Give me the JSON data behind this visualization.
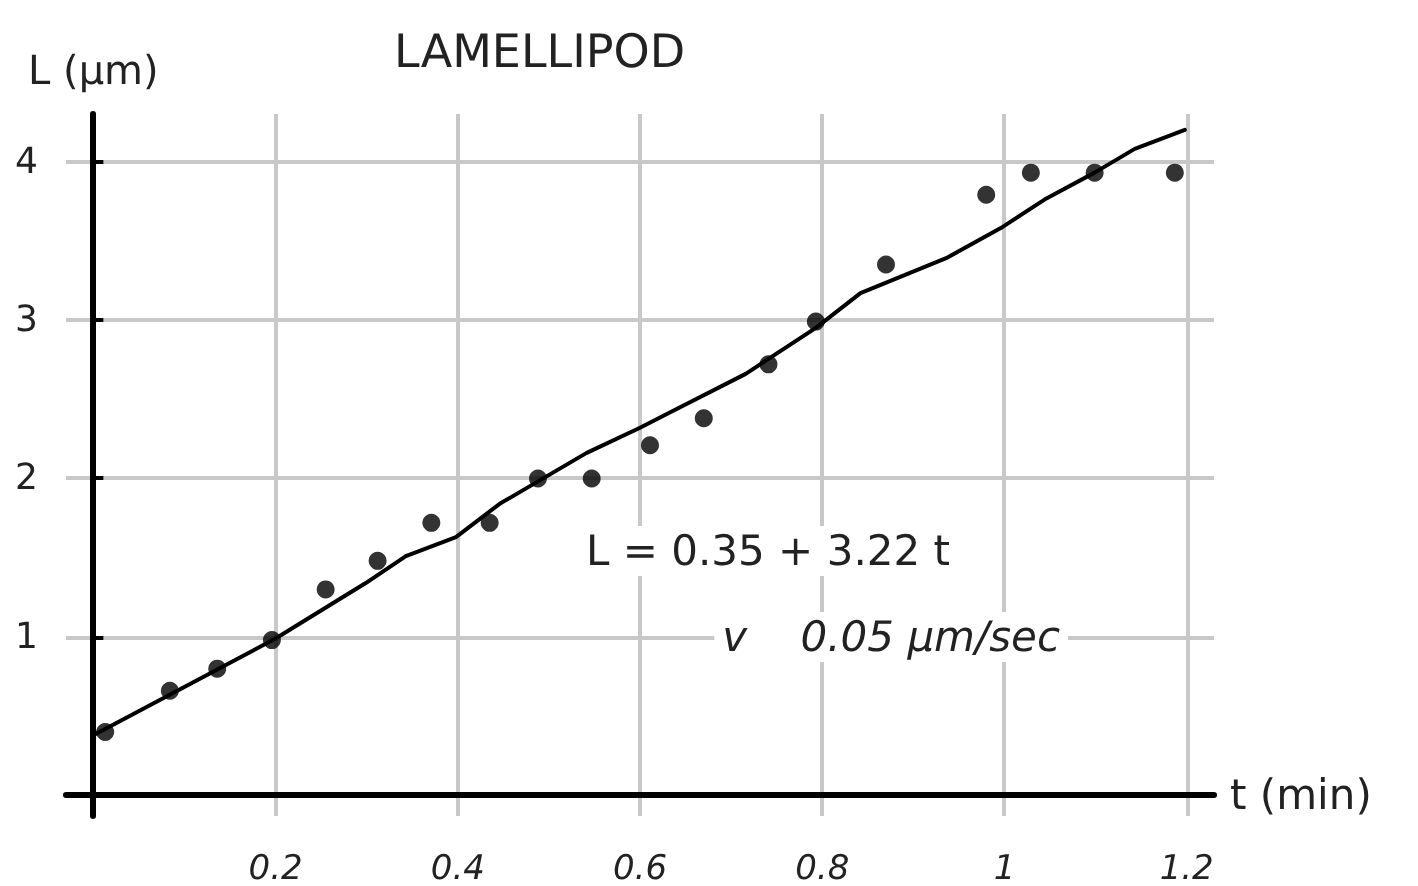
{
  "chart_data": {
    "type": "scatter",
    "title": "LAMELLIPOD",
    "xlabel": "t (min)",
    "ylabel": "L (μm)",
    "annotations": [
      "L = 0.35 + 3.22 t",
      "v    0.05 μm/sec"
    ],
    "x": [
      0.013,
      0.084,
      0.136,
      0.196,
      0.255,
      0.312,
      0.371,
      0.435,
      0.488,
      0.547,
      0.611,
      0.67,
      0.741,
      0.793,
      0.87,
      0.98,
      1.029,
      1.099,
      1.187
    ],
    "series": [
      {
        "color": "#000000",
        "marker": "circle",
        "values": [
          0.4,
          0.66,
          0.8,
          0.98,
          1.3,
          1.48,
          1.72,
          1.72,
          2.0,
          2.0,
          2.21,
          2.38,
          2.72,
          2.99,
          3.35,
          3.79,
          3.93,
          3.93,
          3.93
        ]
      },
      {
        "type": "line",
        "color": "#000000",
        "marker": "none",
        "x": [
          0,
          0.2,
          0.299,
          0.343,
          0.398,
          0.446,
          0.541,
          0.6,
          0.644,
          0.716,
          0.793,
          0.842,
          0.936,
          0.996,
          1.044,
          1.099,
          1.143,
          1.198
        ],
        "values": [
          0.38,
          0.99,
          1.34,
          1.51,
          1.63,
          1.84,
          2.16,
          2.32,
          2.45,
          2.66,
          2.95,
          3.17,
          3.39,
          3.58,
          3.76,
          3.93,
          4.08,
          4.2
        ]
      }
    ],
    "xlim": [
      -0.03,
      1.23
    ],
    "ylim": [
      -0.13,
      4.3
    ],
    "xticks": [
      0.2,
      0.4,
      0.6,
      0.8,
      1,
      1.2
    ],
    "yticks": [
      1,
      2,
      3,
      4
    ],
    "grid": true
  }
}
